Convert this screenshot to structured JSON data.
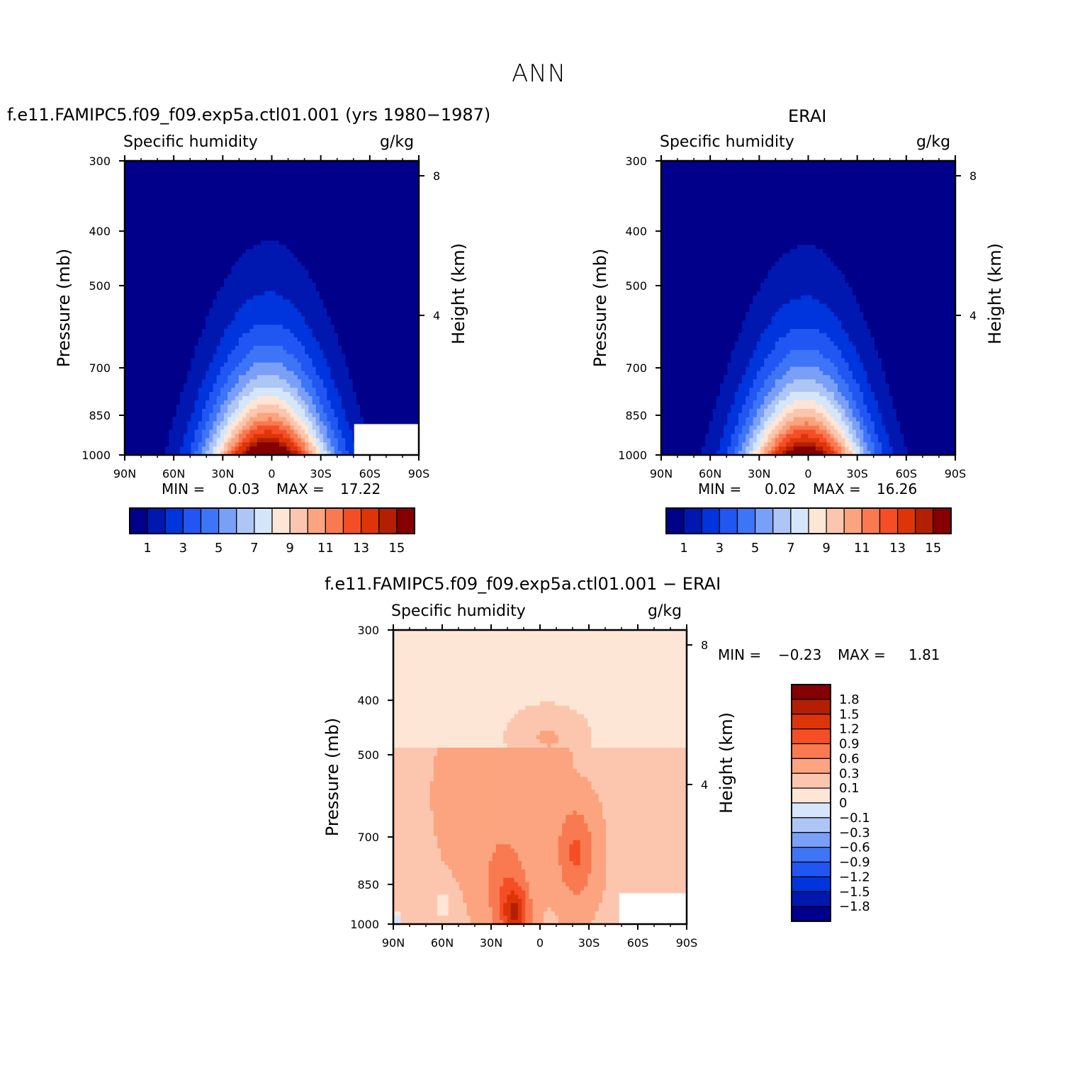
{
  "figure_title": "ANN",
  "colors": {
    "seq": [
      "#00008B",
      "#0018B0",
      "#0034DC",
      "#2156F2",
      "#3E74F6",
      "#7A9FF7",
      "#AEC6F6",
      "#D5E6FB",
      "#FEE6D6",
      "#FCC6AE",
      "#FBA47F",
      "#F97A50",
      "#F54E27",
      "#DD3508",
      "#B21F02",
      "#850000"
    ],
    "div": [
      "#00008B",
      "#0018B0",
      "#0034DC",
      "#2156F2",
      "#3E74F6",
      "#7A9FF7",
      "#AEC6F6",
      "#D5E6FB",
      "#FEE6D6",
      "#FCC6AE",
      "#FBA47F",
      "#F97A50",
      "#F54E27",
      "#DD3508",
      "#B21F02",
      "#850000"
    ]
  },
  "chart_data": [
    {
      "id": "model",
      "type": "contour",
      "title": "f.e11.FAMIPC5.f09_f09.exp5a.ctl01.001 (yrs 1980−1987)",
      "left_label": "Specific humidity",
      "right_label": "g/kg",
      "xlabel": "",
      "ylabel": "Pressure (mb)",
      "y2label": "Height (km)",
      "x_ticks": [
        "90N",
        "60N",
        "30N",
        "0",
        "30S",
        "60S",
        "90S"
      ],
      "y_ticks": [
        300,
        400,
        500,
        700,
        850,
        1000
      ],
      "y2_ticks": [
        8,
        4
      ],
      "min_label": "MIN =",
      "min_value": "0.03",
      "max_label": "MAX =",
      "max_value": "17.22",
      "colorbar_labels": [
        "1",
        "3",
        "5",
        "7",
        "9",
        "11",
        "13",
        "15"
      ],
      "peak_value": 17.22
    },
    {
      "id": "obs",
      "type": "contour",
      "title": "ERAI",
      "left_label": "Specific humidity",
      "right_label": "g/kg",
      "xlabel": "",
      "ylabel": "Pressure (mb)",
      "y2label": "Height (km)",
      "x_ticks": [
        "90N",
        "60N",
        "30N",
        "0",
        "30S",
        "60S",
        "90S"
      ],
      "y_ticks": [
        300,
        400,
        500,
        700,
        850,
        1000
      ],
      "y2_ticks": [
        8,
        4
      ],
      "min_label": "MIN =",
      "min_value": "0.02",
      "max_label": "MAX =",
      "max_value": "16.26",
      "colorbar_labels": [
        "1",
        "3",
        "5",
        "7",
        "9",
        "11",
        "13",
        "15"
      ],
      "peak_value": 16.26
    },
    {
      "id": "diff",
      "type": "contour",
      "title": "f.e11.FAMIPC5.f09_f09.exp5a.ctl01.001 − ERAI",
      "left_label": "Specific humidity",
      "right_label": "g/kg",
      "xlabel": "",
      "ylabel": "Pressure (mb)",
      "y2label": "Height (km)",
      "x_ticks": [
        "90N",
        "60N",
        "30N",
        "0",
        "30S",
        "60S",
        "90S"
      ],
      "y_ticks": [
        300,
        400,
        500,
        700,
        850,
        1000
      ],
      "y2_ticks": [
        8,
        4
      ],
      "min_label": "MIN =",
      "min_value": "−0.23",
      "max_label": "MAX =",
      "max_value": "1.81",
      "colorbar_labels": [
        "1.8",
        "1.5",
        "1.2",
        "0.9",
        "0.6",
        "0.3",
        "0.1",
        "0",
        "−0.1",
        "−0.3",
        "−0.6",
        "−0.9",
        "−1.2",
        "−1.5",
        "−1.8"
      ]
    }
  ]
}
